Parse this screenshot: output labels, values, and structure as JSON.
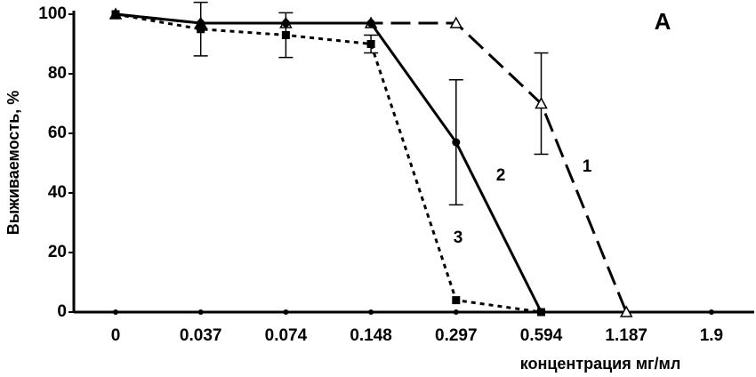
{
  "chart_data": {
    "type": "line",
    "title": "A",
    "x_label": "концентрация мг/мл",
    "y_label": "Выживаемость, %",
    "categories": [
      "0",
      "0.037",
      "0.074",
      "0.148",
      "0.297",
      "0.594",
      "1.187",
      "1.9"
    ],
    "ylim": [
      0,
      100
    ],
    "yticks": [
      0,
      20,
      40,
      60,
      80,
      100
    ],
    "grid": false,
    "series": [
      {
        "name": "1",
        "color": "#000000",
        "dash": "long",
        "marker": "triangle",
        "values": [
          100,
          97,
          97,
          97,
          97,
          70,
          0,
          null
        ],
        "errors": [
          null,
          null,
          null,
          null,
          null,
          17,
          null,
          null
        ]
      },
      {
        "name": "2",
        "color": "#000000",
        "dash": "solid",
        "marker": "circle",
        "values": [
          100,
          97,
          97,
          97,
          57,
          0,
          null,
          null
        ],
        "errors": [
          null,
          null,
          null,
          null,
          21,
          null,
          null,
          null
        ]
      },
      {
        "name": "3",
        "color": "#000000",
        "dash": "dotted",
        "marker": "square",
        "values": [
          100,
          95,
          93,
          90,
          4,
          0,
          null,
          null
        ],
        "errors": [
          null,
          9,
          7.5,
          3,
          null,
          null,
          null,
          null
        ]
      }
    ]
  }
}
